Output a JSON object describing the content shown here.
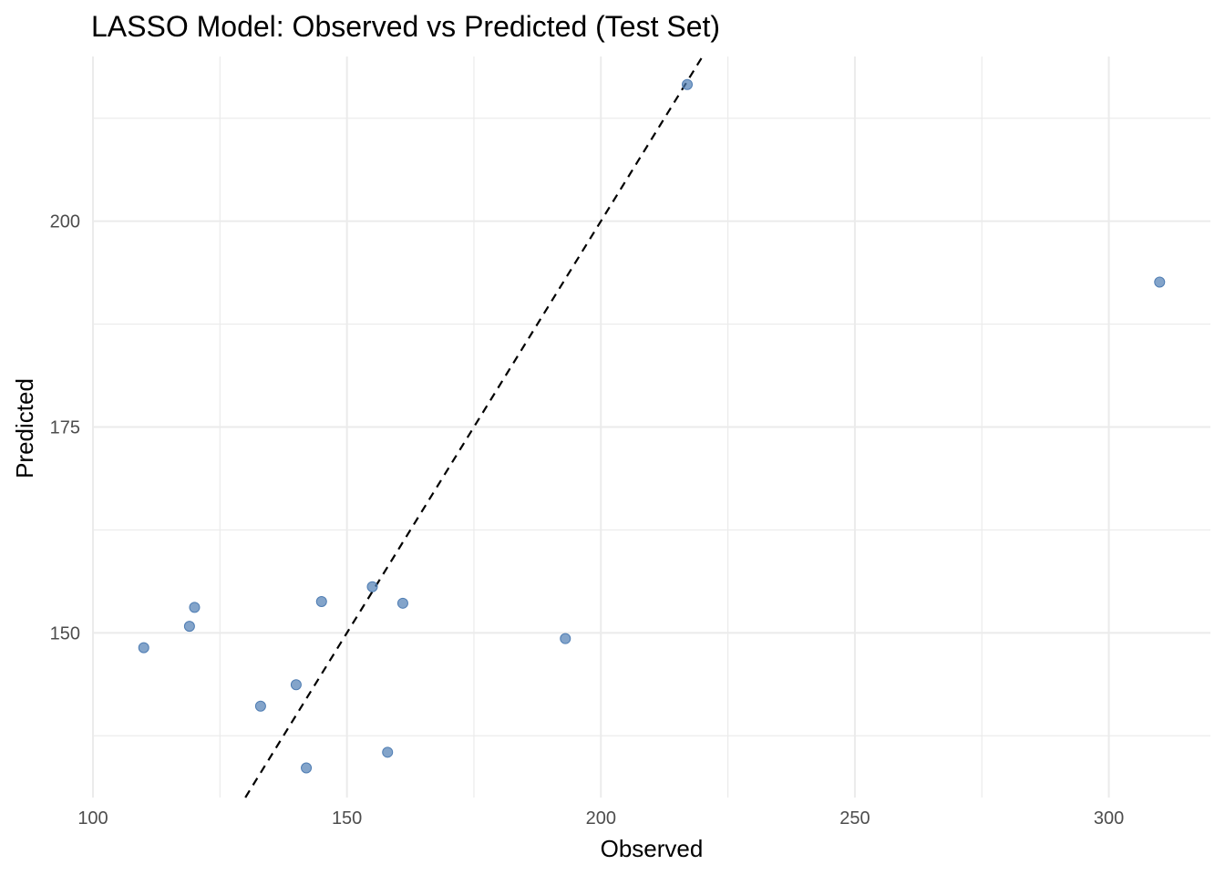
{
  "chart_data": {
    "type": "scatter",
    "title": "LASSO Model: Observed vs Predicted (Test Set)",
    "xlabel": "Observed",
    "ylabel": "Predicted",
    "xlim": [
      100,
      320
    ],
    "ylim": [
      130,
      220
    ],
    "x_ticks": [
      100,
      150,
      200,
      250,
      300
    ],
    "y_ticks": [
      150,
      175,
      200
    ],
    "x_minor_ticks": [
      125,
      175,
      225,
      275
    ],
    "y_minor_ticks": [
      137.5,
      162.5,
      187.5,
      212.5
    ],
    "grid": true,
    "legend": "none",
    "reference_line": {
      "type": "identity",
      "style": "dashed",
      "color": "#000000"
    },
    "point_color": "#4f7db3",
    "points": [
      {
        "x": 110,
        "y": 148.2
      },
      {
        "x": 119,
        "y": 150.8
      },
      {
        "x": 120,
        "y": 153.1
      },
      {
        "x": 133,
        "y": 141.1
      },
      {
        "x": 140,
        "y": 143.7
      },
      {
        "x": 142,
        "y": 133.6
      },
      {
        "x": 145,
        "y": 153.8
      },
      {
        "x": 155,
        "y": 155.6
      },
      {
        "x": 158,
        "y": 135.5
      },
      {
        "x": 161,
        "y": 153.6
      },
      {
        "x": 193,
        "y": 149.3
      },
      {
        "x": 217,
        "y": 216.6
      },
      {
        "x": 310,
        "y": 192.6
      }
    ]
  }
}
